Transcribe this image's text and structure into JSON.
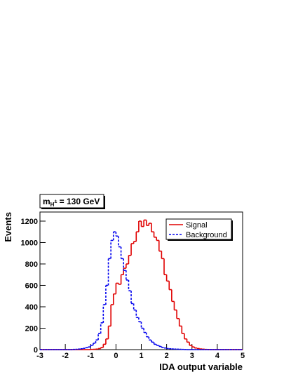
{
  "chart_data": {
    "type": "histogram",
    "annotation": {
      "text": "m",
      "subscript": "H",
      "superscript": "±",
      "suffix": " = 130 GeV"
    },
    "x_label": "IDA output variable",
    "y_label": "Events",
    "bins": [
      -3,
      -2.9,
      -2.8,
      -2.7,
      -2.6,
      -2.5,
      -2.4,
      -2.3,
      -2.2,
      -2.1,
      -2,
      -1.9,
      -1.8,
      -1.7,
      -1.6,
      -1.5,
      -1.4,
      -1.3,
      -1.2,
      -1.1,
      -1,
      -0.9,
      -0.8,
      -0.7,
      -0.6,
      -0.5,
      -0.4,
      -0.3,
      -0.2,
      -0.1,
      0,
      0.1,
      0.2,
      0.3,
      0.4,
      0.5,
      0.6,
      0.7,
      0.8,
      0.9,
      1,
      1.1,
      1.2,
      1.3,
      1.4,
      1.5,
      1.6,
      1.7,
      1.8,
      1.9,
      2,
      2.1,
      2.2,
      2.3,
      2.4,
      2.5,
      2.6,
      2.7,
      2.8,
      2.9,
      3,
      3.1,
      3.2,
      3.3,
      3.4,
      3.5,
      3.6,
      3.7,
      3.8,
      3.9,
      4,
      4.1,
      4.2,
      4.3,
      4.4,
      4.5,
      4.6,
      4.7,
      4.8,
      4.9,
      5
    ],
    "series": [
      {
        "name": "Signal",
        "color": "#e00000",
        "dash": "solid",
        "values": [
          0,
          0,
          0,
          0,
          0,
          0,
          0,
          0,
          0,
          0,
          0,
          0,
          0,
          0,
          0,
          0,
          0,
          0,
          0,
          0,
          2,
          3,
          5,
          10,
          20,
          50,
          100,
          220,
          420,
          520,
          620,
          610,
          700,
          760,
          800,
          880,
          990,
          1010,
          1100,
          1200,
          1150,
          1210,
          1160,
          1180,
          1100,
          1050,
          1020,
          920,
          850,
          700,
          640,
          560,
          450,
          370,
          290,
          220,
          150,
          100,
          70,
          40,
          25,
          15,
          10,
          6,
          4,
          2,
          1,
          0,
          0,
          0,
          0,
          0,
          0,
          0,
          0,
          0,
          0,
          0,
          0,
          0
        ]
      },
      {
        "name": "Background",
        "color": "#0000ee",
        "dash": "dashed",
        "values": [
          0,
          0,
          0,
          0,
          0,
          0,
          0,
          0,
          0,
          0,
          0,
          0,
          0,
          2,
          3,
          5,
          8,
          12,
          18,
          25,
          40,
          60,
          90,
          150,
          250,
          420,
          600,
          850,
          1020,
          1100,
          1060,
          960,
          850,
          740,
          650,
          550,
          430,
          370,
          300,
          260,
          200,
          160,
          120,
          90,
          70,
          50,
          40,
          30,
          20,
          15,
          10,
          8,
          6,
          5,
          4,
          3,
          2,
          1,
          0,
          0,
          0,
          0,
          0,
          0,
          0,
          0,
          0,
          0,
          0,
          0,
          0,
          0,
          0,
          0,
          0,
          0,
          0,
          0,
          0,
          0
        ]
      }
    ],
    "xlim": [
      -3,
      5
    ],
    "ylim": [
      0,
      1285
    ],
    "xticks": [
      -3,
      -2,
      -1,
      0,
      1,
      2,
      3,
      4,
      5
    ],
    "yticks": [
      0,
      200,
      400,
      600,
      800,
      1000,
      1200
    ],
    "legend": "top-right"
  }
}
